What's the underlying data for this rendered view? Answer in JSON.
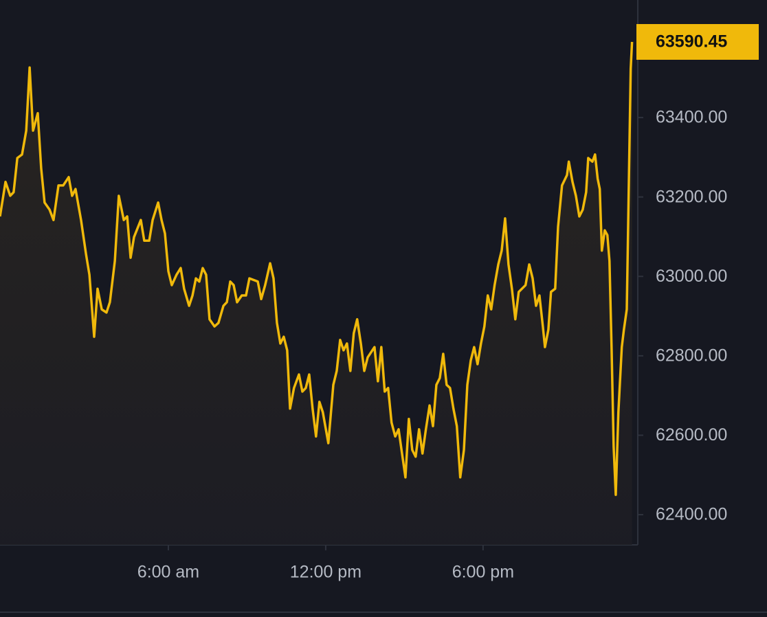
{
  "chart_data": {
    "type": "line",
    "color": "#f0b90b",
    "x": [
      -0.42,
      -0.21,
      -0.03,
      0.1,
      0.24,
      0.42,
      0.58,
      0.71,
      0.84,
      1.02,
      1.15,
      1.28,
      1.47,
      1.62,
      1.81,
      1.99,
      2.2,
      2.33,
      2.46,
      2.67,
      2.86,
      2.99,
      3.17,
      3.3,
      3.46,
      3.64,
      3.77,
      3.96,
      4.11,
      4.3,
      4.43,
      4.56,
      4.69,
      4.95,
      5.08,
      5.27,
      5.4,
      5.61,
      5.74,
      5.87,
      6.0,
      6.13,
      6.31,
      6.47,
      6.6,
      6.79,
      6.92,
      7.05,
      7.18,
      7.31,
      7.44,
      7.57,
      7.76,
      7.91,
      8.1,
      8.23,
      8.36,
      8.49,
      8.62,
      8.8,
      8.96,
      9.09,
      9.41,
      9.54,
      9.69,
      9.88,
      10.01,
      10.14,
      10.27,
      10.4,
      10.53,
      10.64,
      10.79,
      10.98,
      11.11,
      11.24,
      11.37,
      11.5,
      11.63,
      11.76,
      11.89,
      12.1,
      12.29,
      12.42,
      12.55,
      12.68,
      12.81,
      12.94,
      13.07,
      13.2,
      13.34,
      13.47,
      13.6,
      13.86,
      13.99,
      14.12,
      14.25,
      14.38,
      14.51,
      14.65,
      14.78,
      14.91,
      15.04,
      15.17,
      15.3,
      15.43,
      15.56,
      15.69,
      15.82,
      15.96,
      16.09,
      16.22,
      16.35,
      16.48,
      16.61,
      16.74,
      16.87,
      17.0,
      17.13,
      17.27,
      17.4,
      17.53,
      17.66,
      17.79,
      17.92,
      18.05,
      18.18,
      18.31,
      18.44,
      18.58,
      18.71,
      18.84,
      18.97,
      19.1,
      19.23,
      19.36,
      19.62,
      19.76,
      19.89,
      20.02,
      20.15,
      20.28,
      20.36,
      20.49,
      20.59,
      20.75,
      20.86,
      21.01,
      21.2,
      21.27,
      21.41,
      21.54,
      21.67,
      21.8,
      21.93,
      22.01,
      22.17,
      22.27,
      22.37,
      22.45,
      22.53,
      22.64,
      22.74,
      22.82,
      22.9,
      22.98,
      23.06,
      23.16,
      23.29,
      23.37,
      23.48,
      23.63,
      23.68
    ],
    "values": [
      63151,
      63238,
      63203,
      63212,
      63298,
      63307,
      63367,
      63526,
      63367,
      63411,
      63272,
      63186,
      63168,
      63142,
      63229,
      63229,
      63250,
      63203,
      63220,
      63142,
      63056,
      63004,
      62848,
      62969,
      62917,
      62909,
      62935,
      63039,
      63203,
      63142,
      63151,
      63047,
      63099,
      63142,
      63090,
      63090,
      63142,
      63186,
      63142,
      63108,
      63013,
      62978,
      63004,
      63021,
      62969,
      62926,
      62952,
      62995,
      62987,
      63021,
      63004,
      62892,
      62874,
      62883,
      62926,
      62935,
      62987,
      62978,
      62935,
      62952,
      62952,
      62995,
      62987,
      62943,
      62978,
      63033,
      62995,
      62883,
      62831,
      62848,
      62814,
      62667,
      62719,
      62753,
      62710,
      62719,
      62753,
      62667,
      62597,
      62684,
      62658,
      62580,
      62727,
      62762,
      62840,
      62814,
      62831,
      62762,
      62857,
      62892,
      62831,
      62762,
      62796,
      62822,
      62736,
      62822,
      62710,
      62719,
      62632,
      62597,
      62615,
      62554,
      62494,
      62641,
      62563,
      62546,
      62615,
      62554,
      62615,
      62675,
      62623,
      62727,
      62744,
      62805,
      62727,
      62719,
      62667,
      62623,
      62494,
      62563,
      62727,
      62788,
      62822,
      62779,
      62831,
      62874,
      62952,
      62917,
      62978,
      63030,
      63065,
      63146,
      63030,
      62969,
      62892,
      62961,
      62978,
      63030,
      62995,
      62926,
      62952,
      62874,
      62822,
      62866,
      62961,
      62969,
      63125,
      63229,
      63255,
      63289,
      63238,
      63203,
      63151,
      63168,
      63212,
      63298,
      63289,
      63307,
      63246,
      63220,
      63065,
      63116,
      63104,
      63039,
      62822,
      62571,
      62450,
      62658,
      62822,
      62866,
      62917,
      63523,
      63590.45
    ],
    "xlim": [
      -0.42,
      23.9
    ],
    "ylim": [
      62324,
      63696
    ],
    "xticks": [
      {
        "value": 6,
        "label": "6:00 am"
      },
      {
        "value": 12,
        "label": "12:00 pm"
      },
      {
        "value": 18,
        "label": "6:00 pm"
      }
    ],
    "yticks": [
      {
        "value": 62400,
        "label": "62400.00"
      },
      {
        "value": 62600,
        "label": "62600.00"
      },
      {
        "value": 62800,
        "label": "62800.00"
      },
      {
        "value": 63000,
        "label": "63000.00"
      },
      {
        "value": 63200,
        "label": "63200.00"
      },
      {
        "value": 63400,
        "label": "63400.00"
      }
    ],
    "grid": false
  }
}
